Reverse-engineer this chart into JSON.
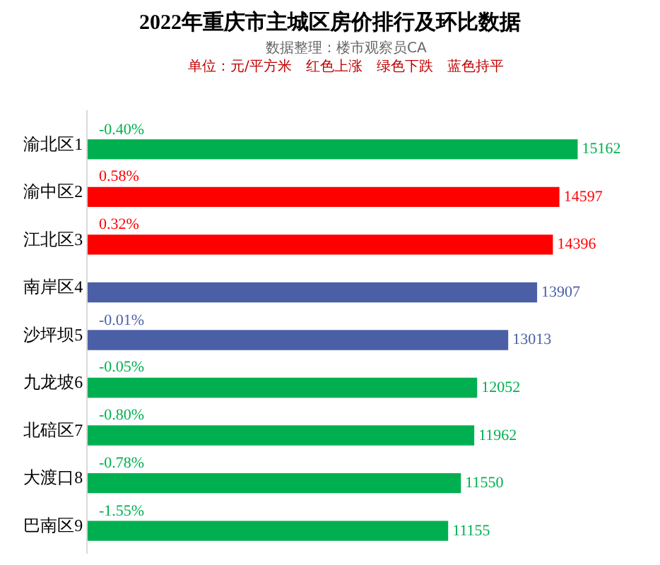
{
  "chart_data": {
    "type": "bar",
    "orientation": "horizontal",
    "title": "2022年重庆市主城区房价排行及环比数据",
    "subtitle": "数据整理：楼市观察员CA\n单位：元/平方米　红色上涨　绿色下跌　蓝色持平",
    "categories": [
      "渝北区1",
      "渝中区2",
      "江北区3",
      "南岸区4",
      "沙坪坝5",
      "九龙坡6",
      "北碚区7",
      "大渡口8",
      "巴南区9"
    ],
    "values": [
      15162,
      14597,
      14396,
      13907,
      13013,
      12052,
      11962,
      11550,
      11155
    ],
    "colors": [
      "#00b050",
      "#ff0000",
      "#ff0000",
      "#4a5fa6",
      "#4a5fa6",
      "#00b050",
      "#00b050",
      "#00b050",
      "#00b050"
    ],
    "data_labels": true,
    "tick_labels": "y",
    "legend": false,
    "annotations": [
      {
        "text": "-0.40%",
        "y": "渝北区1"
      },
      {
        "text": "0.58%",
        "y": "渝中区2"
      },
      {
        "text": "0.32%",
        "y": "江北区3"
      },
      {
        "text": "-0.01%",
        "y": "沙坪坝5"
      },
      {
        "text": "-0.05%",
        "y": "九龙坡6"
      },
      {
        "text": "-0.80%",
        "y": "北碚区7"
      },
      {
        "text": "-0.78%",
        "y": "大渡口8"
      },
      {
        "text": "-1.55%",
        "y": "巴南区9"
      }
    ]
  }
}
